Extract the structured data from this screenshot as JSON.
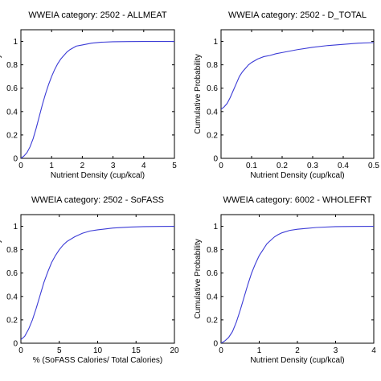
{
  "chart_data": [
    {
      "type": "line",
      "title": "WWEIA category: 2502 - ALLMEAT",
      "xlabel": "Nutrient Density (cup/kcal)",
      "ylabel": "Cumulative Probability",
      "xlim": [
        0,
        5
      ],
      "ylim": [
        0,
        1.1
      ],
      "xticks": [
        0,
        1,
        2,
        3,
        4,
        5
      ],
      "xtick_labels": [
        "0",
        "1",
        "2",
        "3",
        "4",
        "5"
      ],
      "yticks": [
        0,
        0.2,
        0.4,
        0.6,
        0.8,
        1
      ],
      "ytick_labels": [
        "0",
        "0.2",
        "0.4",
        "0.6",
        "0.8",
        "1"
      ],
      "color": "#3b3bd6",
      "series": [
        {
          "x": [
            0,
            0.1,
            0.2,
            0.3,
            0.4,
            0.5,
            0.6,
            0.7,
            0.8,
            0.9,
            1.0,
            1.1,
            1.2,
            1.3,
            1.4,
            1.5,
            1.6,
            1.8,
            2.0,
            2.3,
            2.6,
            3.0,
            3.5,
            4.0,
            5.0
          ],
          "y": [
            0,
            0.02,
            0.05,
            0.1,
            0.17,
            0.26,
            0.36,
            0.46,
            0.55,
            0.63,
            0.7,
            0.76,
            0.81,
            0.85,
            0.88,
            0.91,
            0.93,
            0.96,
            0.97,
            0.985,
            0.993,
            0.997,
            0.999,
            1.0,
            1.0
          ]
        }
      ]
    },
    {
      "type": "line",
      "title": "WWEIA category: 2502 - D_TOTAL",
      "xlabel": "Nutrient Density (cup/kcal)",
      "ylabel": "Cumulative Probability",
      "xlim": [
        0,
        0.5
      ],
      "ylim": [
        0,
        1.1
      ],
      "xticks": [
        0,
        0.1,
        0.2,
        0.3,
        0.4,
        0.5
      ],
      "xtick_labels": [
        "0",
        "0.1",
        "0.2",
        "0.3",
        "0.4",
        "0.5"
      ],
      "yticks": [
        0,
        0.2,
        0.4,
        0.6,
        0.8,
        1
      ],
      "ytick_labels": [
        "0",
        "0.2",
        "0.4",
        "0.6",
        "0.8",
        "1"
      ],
      "color": "#3b3bd6",
      "series": [
        {
          "x": [
            0,
            0.01,
            0.02,
            0.03,
            0.04,
            0.05,
            0.06,
            0.07,
            0.08,
            0.09,
            0.1,
            0.12,
            0.14,
            0.16,
            0.18,
            0.2,
            0.25,
            0.3,
            0.35,
            0.4,
            0.45,
            0.5
          ],
          "y": [
            0.42,
            0.44,
            0.47,
            0.52,
            0.58,
            0.64,
            0.7,
            0.74,
            0.77,
            0.8,
            0.82,
            0.85,
            0.87,
            0.88,
            0.895,
            0.905,
            0.93,
            0.95,
            0.965,
            0.975,
            0.985,
            0.99
          ]
        }
      ]
    },
    {
      "type": "line",
      "title": "WWEIA category: 2502 - SoFASS",
      "xlabel": "% (SoFASS Calories/ Total Calories)",
      "ylabel": "Cumulative Probability",
      "xlim": [
        0,
        20
      ],
      "ylim": [
        0,
        1.1
      ],
      "xticks": [
        0,
        5,
        10,
        15,
        20
      ],
      "xtick_labels": [
        "0",
        "5",
        "10",
        "15",
        "20"
      ],
      "yticks": [
        0,
        0.2,
        0.4,
        0.6,
        0.8,
        1
      ],
      "ytick_labels": [
        "0",
        "0.2",
        "0.4",
        "0.6",
        "0.8",
        "1"
      ],
      "color": "#3b3bd6",
      "series": [
        {
          "x": [
            0,
            0.5,
            1,
            1.5,
            2,
            2.5,
            3,
            3.5,
            4,
            4.5,
            5,
            5.5,
            6,
            7,
            8,
            9,
            10,
            12,
            14,
            16,
            18,
            20
          ],
          "y": [
            0.03,
            0.06,
            0.12,
            0.2,
            0.3,
            0.41,
            0.52,
            0.61,
            0.69,
            0.75,
            0.8,
            0.84,
            0.87,
            0.91,
            0.94,
            0.96,
            0.97,
            0.985,
            0.993,
            0.997,
            0.999,
            1.0
          ]
        }
      ]
    },
    {
      "type": "line",
      "title": "WWEIA category: 6002 - WHOLEFRT",
      "xlabel": "Nutrient Density (cup/kcal)",
      "ylabel": "Cumulative Probability",
      "xlim": [
        0,
        4
      ],
      "ylim": [
        0,
        1.1
      ],
      "xticks": [
        0,
        1,
        2,
        3,
        4
      ],
      "xtick_labels": [
        "0",
        "1",
        "2",
        "3",
        "4"
      ],
      "yticks": [
        0,
        0.2,
        0.4,
        0.6,
        0.8,
        1
      ],
      "ytick_labels": [
        "0",
        "0.2",
        "0.4",
        "0.6",
        "0.8",
        "1"
      ],
      "color": "#3b3bd6",
      "series": [
        {
          "x": [
            0,
            0.1,
            0.2,
            0.3,
            0.4,
            0.5,
            0.6,
            0.7,
            0.8,
            0.9,
            1.0,
            1.1,
            1.2,
            1.3,
            1.4,
            1.5,
            1.6,
            1.8,
            2.0,
            2.5,
            3.0,
            3.5,
            4.0
          ],
          "y": [
            0,
            0.02,
            0.05,
            0.1,
            0.18,
            0.28,
            0.39,
            0.5,
            0.6,
            0.68,
            0.75,
            0.8,
            0.85,
            0.88,
            0.91,
            0.93,
            0.945,
            0.965,
            0.975,
            0.99,
            0.997,
            0.999,
            1.0
          ]
        }
      ]
    }
  ]
}
